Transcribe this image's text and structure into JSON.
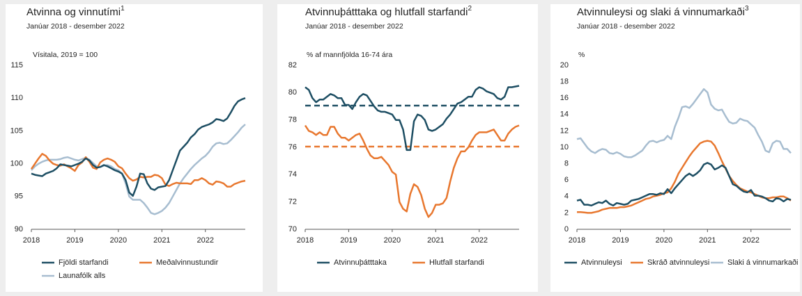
{
  "chart_data": [
    {
      "type": "line",
      "title": "Atvinna og vinnutími",
      "title_note": "1",
      "subtitle": "Janúar 2018 - desember 2022",
      "ylabel": "Vísitala, 2019 = 100",
      "categories": [
        "2018",
        null,
        null,
        null,
        null,
        null,
        null,
        null,
        null,
        null,
        null,
        null,
        "2019",
        null,
        null,
        null,
        null,
        null,
        null,
        null,
        null,
        null,
        null,
        null,
        "2020",
        null,
        null,
        null,
        null,
        null,
        null,
        null,
        null,
        null,
        null,
        null,
        "2021",
        null,
        null,
        null,
        null,
        null,
        null,
        null,
        null,
        null,
        null,
        null,
        "2022",
        null,
        null,
        null,
        null,
        null,
        null,
        null,
        null,
        null,
        null,
        null
      ],
      "ylim": [
        90,
        115
      ],
      "yticks": [
        90,
        95,
        100,
        105,
        110,
        115
      ],
      "grid": false,
      "series": [
        {
          "name": "Fjöldi starfandi",
          "color": "#1d4e63",
          "values": [
            98.5,
            98.3,
            98.2,
            98.1,
            98.5,
            98.7,
            98.9,
            99.3,
            99.9,
            99.8,
            99.7,
            99.6,
            99.8,
            100.0,
            100.3,
            100.8,
            100.5,
            99.8,
            99.4,
            99.5,
            99.8,
            99.6,
            99.3,
            99.0,
            98.8,
            98.5,
            97.5,
            95.6,
            95.1,
            96.5,
            98.5,
            98.4,
            97.0,
            96.2,
            96.0,
            96.4,
            96.5,
            96.6,
            97.5,
            99.0,
            100.5,
            102.0,
            102.6,
            103.2,
            104.0,
            104.5,
            105.2,
            105.6,
            105.8,
            106.0,
            106.3,
            106.8,
            106.7,
            106.5,
            106.9,
            107.8,
            108.8,
            109.5,
            109.8,
            110.0
          ]
        },
        {
          "name": "Meðalvinnustundir",
          "color": "#e8772e",
          "values": [
            99.2,
            100.0,
            100.8,
            101.5,
            101.2,
            100.5,
            100.0,
            99.8,
            99.7,
            99.9,
            99.6,
            99.3,
            98.9,
            99.8,
            100.2,
            101.0,
            100.3,
            99.4,
            99.2,
            100.2,
            100.6,
            100.8,
            100.6,
            100.3,
            99.6,
            99.3,
            98.5,
            97.8,
            97.4,
            97.6,
            98.0,
            97.9,
            98.0,
            98.0,
            98.3,
            98.2,
            97.8,
            96.8,
            96.6,
            96.9,
            97.1,
            97.0,
            97.0,
            97.0,
            96.9,
            97.5,
            97.5,
            97.8,
            97.5,
            97.0,
            96.8,
            97.3,
            97.2,
            97.0,
            96.5,
            96.5,
            96.9,
            97.1,
            97.3,
            97.4
          ]
        },
        {
          "name": "Launafólk alls",
          "color": "#a7bdd0",
          "values": [
            99.0,
            99.6,
            100.0,
            100.3,
            100.5,
            100.6,
            100.6,
            100.6,
            100.7,
            100.9,
            101.0,
            100.8,
            100.6,
            100.5,
            100.7,
            100.9,
            100.6,
            100.1,
            99.6,
            99.5,
            99.7,
            99.8,
            99.6,
            99.2,
            99.0,
            98.5,
            97.0,
            95.0,
            94.5,
            94.5,
            94.5,
            94.0,
            93.3,
            92.5,
            92.3,
            92.5,
            92.8,
            93.3,
            94.0,
            95.0,
            96.0,
            97.0,
            97.8,
            98.5,
            99.2,
            99.8,
            100.3,
            100.8,
            101.2,
            101.8,
            102.6,
            103.1,
            103.2,
            103.0,
            103.1,
            103.6,
            104.2,
            104.8,
            105.5,
            106.0
          ]
        }
      ]
    },
    {
      "type": "line",
      "title": "Atvinnuþátttaka og hlutfall starfandi",
      "title_note": "2",
      "subtitle": "Janúar 2018 - desember 2022",
      "ylabel": "% af mannfjölda 16-74 ára",
      "categories": [
        "2018",
        null,
        null,
        null,
        null,
        null,
        null,
        null,
        null,
        null,
        null,
        null,
        "2019",
        null,
        null,
        null,
        null,
        null,
        null,
        null,
        null,
        null,
        null,
        null,
        "2020",
        null,
        null,
        null,
        null,
        null,
        null,
        null,
        null,
        null,
        null,
        null,
        "2021",
        null,
        null,
        null,
        null,
        null,
        null,
        null,
        null,
        null,
        null,
        null,
        "2022",
        null,
        null,
        null,
        null,
        null,
        null,
        null,
        null,
        null,
        null,
        null
      ],
      "ylim": [
        70,
        82
      ],
      "yticks": [
        70,
        72,
        74,
        76,
        78,
        80,
        82
      ],
      "grid": false,
      "reference_lines": [
        {
          "value": 79.05,
          "color": "#1d4e63"
        },
        {
          "value": 76.05,
          "color": "#e8772e"
        }
      ],
      "series": [
        {
          "name": "Atvinnuþátttaka",
          "color": "#1d4e63",
          "values": [
            80.4,
            80.2,
            79.6,
            79.3,
            79.5,
            79.5,
            79.7,
            79.9,
            79.8,
            79.6,
            79.6,
            79.1,
            79.1,
            78.8,
            79.3,
            79.7,
            79.9,
            79.8,
            79.4,
            79.0,
            78.7,
            78.6,
            78.6,
            78.5,
            78.4,
            78.0,
            78.0,
            77.3,
            75.8,
            75.8,
            77.9,
            78.4,
            78.3,
            78.0,
            77.3,
            77.2,
            77.3,
            77.5,
            77.7,
            78.1,
            78.4,
            78.8,
            79.2,
            79.3,
            79.5,
            79.7,
            79.7,
            80.2,
            80.4,
            80.3,
            80.1,
            80.0,
            79.9,
            79.6,
            79.5,
            79.7,
            80.4,
            80.4,
            80.45,
            80.5
          ]
        },
        {
          "name": "Hlutfall starfandi",
          "color": "#e8772e",
          "values": [
            77.6,
            77.2,
            77.1,
            76.9,
            77.1,
            76.9,
            76.9,
            77.5,
            77.5,
            77.0,
            76.7,
            76.7,
            76.5,
            76.7,
            76.9,
            77.0,
            76.5,
            75.9,
            75.4,
            75.2,
            75.2,
            75.3,
            75.0,
            74.7,
            74.2,
            74.0,
            72.0,
            71.5,
            71.3,
            72.6,
            73.3,
            73.1,
            72.5,
            71.5,
            70.9,
            71.2,
            71.8,
            71.8,
            71.9,
            72.3,
            73.5,
            74.5,
            75.2,
            75.7,
            75.7,
            76.0,
            76.5,
            76.9,
            77.1,
            77.1,
            77.1,
            77.2,
            77.3,
            76.9,
            76.5,
            76.5,
            77.0,
            77.3,
            77.5,
            77.6
          ]
        }
      ]
    },
    {
      "type": "line",
      "title": "Atvinnuleysi og slaki á vinnumarkaði",
      "title_note": "3",
      "subtitle": "Janúar 2018 - desember 2022",
      "ylabel": "%",
      "categories": [
        "2018",
        null,
        null,
        null,
        null,
        null,
        null,
        null,
        null,
        null,
        null,
        null,
        "2019",
        null,
        null,
        null,
        null,
        null,
        null,
        null,
        null,
        null,
        null,
        null,
        "2020",
        null,
        null,
        null,
        null,
        null,
        null,
        null,
        null,
        null,
        null,
        null,
        "2021",
        null,
        null,
        null,
        null,
        null,
        null,
        null,
        null,
        null,
        null,
        null,
        "2022",
        null,
        null,
        null,
        null,
        null,
        null,
        null,
        null,
        null,
        null,
        null
      ],
      "ylim": [
        0,
        20
      ],
      "yticks": [
        0,
        2,
        4,
        6,
        8,
        10,
        12,
        14,
        16,
        18,
        20
      ],
      "grid": false,
      "series": [
        {
          "name": "Atvinnuleysi",
          "color": "#1d4e63",
          "values": [
            3.5,
            3.6,
            3.0,
            3.0,
            2.9,
            3.1,
            3.3,
            3.2,
            3.5,
            3.1,
            2.9,
            3.2,
            3.1,
            3.0,
            3.1,
            3.5,
            3.6,
            3.7,
            3.9,
            4.1,
            4.3,
            4.3,
            4.2,
            4.4,
            4.3,
            4.9,
            4.4,
            5.0,
            5.5,
            6.0,
            6.5,
            6.8,
            6.5,
            6.8,
            7.2,
            7.9,
            8.1,
            7.9,
            7.3,
            7.5,
            7.8,
            7.5,
            6.5,
            5.5,
            5.3,
            4.9,
            4.6,
            4.5,
            4.8,
            4.1,
            4.1,
            4.0,
            3.8,
            3.5,
            3.4,
            3.8,
            3.7,
            3.4,
            3.7,
            3.6
          ]
        },
        {
          "name": "Skráð atvinnuleysi",
          "color": "#e8772e",
          "values": [
            2.1,
            2.1,
            2.05,
            2.0,
            2.0,
            2.1,
            2.2,
            2.4,
            2.5,
            2.6,
            2.6,
            2.6,
            2.7,
            2.7,
            2.8,
            2.9,
            3.1,
            3.3,
            3.5,
            3.7,
            3.8,
            4.0,
            4.1,
            4.2,
            4.4,
            4.5,
            5.0,
            5.8,
            6.8,
            7.5,
            8.2,
            8.9,
            9.5,
            10.0,
            10.5,
            10.7,
            10.8,
            10.7,
            10.2,
            9.3,
            8.3,
            7.4,
            6.5,
            5.9,
            5.4,
            5.0,
            4.8,
            4.6,
            4.5,
            4.3,
            4.1,
            3.9,
            3.8,
            3.8,
            3.9,
            3.9,
            4.0,
            4.0,
            3.8,
            3.5
          ]
        },
        {
          "name": "Slaki á vinnumarkaði",
          "color": "#a7bdd0",
          "values": [
            11.0,
            11.1,
            10.5,
            9.9,
            9.5,
            9.3,
            9.6,
            9.8,
            9.7,
            9.3,
            9.2,
            9.4,
            9.2,
            8.9,
            8.8,
            8.8,
            9.0,
            9.3,
            9.6,
            10.2,
            10.7,
            10.8,
            10.6,
            10.8,
            10.9,
            11.4,
            11.0,
            12.5,
            13.6,
            14.9,
            15.0,
            14.8,
            15.3,
            15.9,
            16.5,
            17.1,
            16.7,
            15.2,
            14.7,
            14.5,
            14.6,
            13.8,
            13.1,
            12.9,
            13.0,
            13.5,
            13.3,
            13.2,
            12.8,
            12.4,
            11.5,
            10.7,
            9.6,
            9.4,
            10.5,
            10.8,
            10.7,
            9.8,
            9.8,
            9.3
          ]
        }
      ]
    }
  ]
}
